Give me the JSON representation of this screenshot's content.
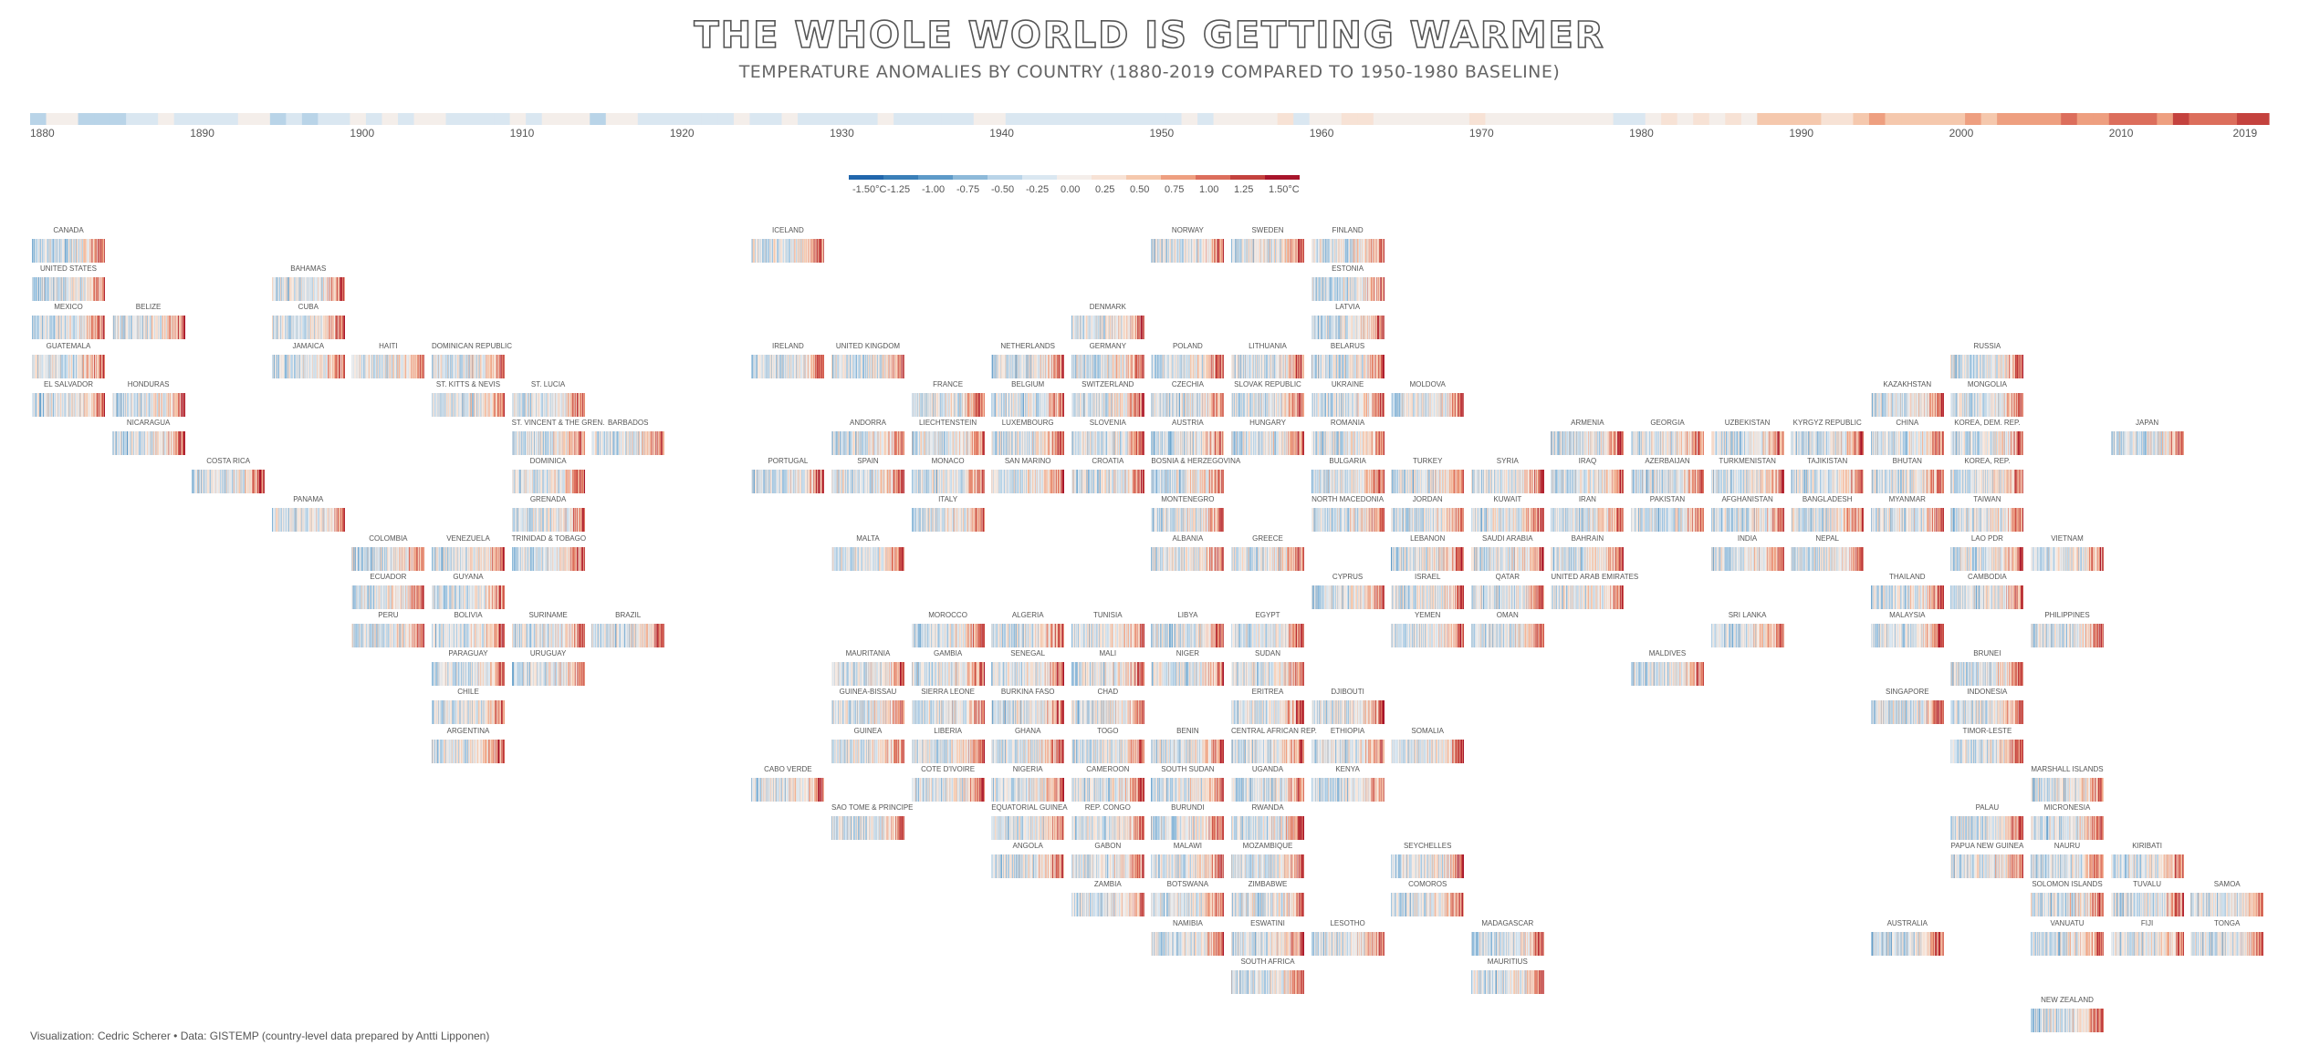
{
  "title": "THE WHOLE WORLD IS GETTING WARMER",
  "subtitle": "TEMPERATURE ANOMALIES BY COUNTRY (1880-2019 COMPARED TO 1950-1980 BASELINE)",
  "caption": "Visualization: Cedric Scherer  •  Data: GISTEMP (country-level data prepared by Antti Lipponen)",
  "timeline_ticks": [
    "1880",
    "1890",
    "1900",
    "1910",
    "1920",
    "1930",
    "1940",
    "1950",
    "1960",
    "1970",
    "1980",
    "1990",
    "2000",
    "2010",
    "2019"
  ],
  "legend": {
    "labels": [
      "-1.50°C",
      "-1.25",
      "-1.00",
      "-0.75",
      "-0.50",
      "-0.25",
      "0.00",
      "0.25",
      "0.50",
      "0.75",
      "1.00",
      "1.25",
      "1.50°C"
    ],
    "colors": [
      "#2166ac",
      "#3a7fb8",
      "#5d9ac8",
      "#8db9d9",
      "#b9d4e8",
      "#dae7f1",
      "#f4eeea",
      "#f7e2d5",
      "#f5c8ad",
      "#ee9f80",
      "#dc6e5c",
      "#c4423e",
      "#a8152b"
    ]
  },
  "chart_data": {
    "type": "heatmap",
    "description_of_encoding": "warming stripes per country; each stripe is one year 1880-2019 colored by temperature anomaly vs 1950-1980 baseline",
    "years": [
      1880,
      2019
    ],
    "color_range_celsius": [
      -1.5,
      1.5
    ],
    "countries": [
      {
        "name": "CANADA",
        "col": 0,
        "row": 0
      },
      {
        "name": "ICELAND",
        "col": 9,
        "row": 0
      },
      {
        "name": "NORWAY",
        "col": 14,
        "row": 0
      },
      {
        "name": "SWEDEN",
        "col": 15,
        "row": 0
      },
      {
        "name": "FINLAND",
        "col": 16,
        "row": 0
      },
      {
        "name": "UNITED STATES",
        "col": 0,
        "row": 1
      },
      {
        "name": "BAHAMAS",
        "col": 3,
        "row": 1
      },
      {
        "name": "ESTONIA",
        "col": 16,
        "row": 1
      },
      {
        "name": "MEXICO",
        "col": 0,
        "row": 2
      },
      {
        "name": "BELIZE",
        "col": 1,
        "row": 2
      },
      {
        "name": "CUBA",
        "col": 3,
        "row": 2
      },
      {
        "name": "DENMARK",
        "col": 13,
        "row": 2
      },
      {
        "name": "LATVIA",
        "col": 16,
        "row": 2
      },
      {
        "name": "GUATEMALA",
        "col": 0,
        "row": 3
      },
      {
        "name": "JAMAICA",
        "col": 3,
        "row": 3
      },
      {
        "name": "HAITI",
        "col": 4,
        "row": 3
      },
      {
        "name": "DOMINICAN REPUBLIC",
        "col": 5,
        "row": 3
      },
      {
        "name": "IRELAND",
        "col": 9,
        "row": 3
      },
      {
        "name": "UNITED KINGDOM",
        "col": 10,
        "row": 3
      },
      {
        "name": "NETHERLANDS",
        "col": 12,
        "row": 3
      },
      {
        "name": "GERMANY",
        "col": 13,
        "row": 3
      },
      {
        "name": "POLAND",
        "col": 14,
        "row": 3
      },
      {
        "name": "LITHUANIA",
        "col": 15,
        "row": 3
      },
      {
        "name": "BELARUS",
        "col": 16,
        "row": 3
      },
      {
        "name": "RUSSIA",
        "col": 24,
        "row": 3
      },
      {
        "name": "EL SALVADOR",
        "col": 0,
        "row": 4
      },
      {
        "name": "HONDURAS",
        "col": 1,
        "row": 4
      },
      {
        "name": "ST. KITTS & NEVIS",
        "col": 5,
        "row": 4
      },
      {
        "name": "ST. LUCIA",
        "col": 6,
        "row": 4
      },
      {
        "name": "FRANCE",
        "col": 11,
        "row": 4
      },
      {
        "name": "BELGIUM",
        "col": 12,
        "row": 4
      },
      {
        "name": "SWITZERLAND",
        "col": 13,
        "row": 4
      },
      {
        "name": "CZECHIA",
        "col": 14,
        "row": 4
      },
      {
        "name": "SLOVAK REPUBLIC",
        "col": 15,
        "row": 4
      },
      {
        "name": "UKRAINE",
        "col": 16,
        "row": 4
      },
      {
        "name": "MOLDOVA",
        "col": 17,
        "row": 4
      },
      {
        "name": "KAZAKHSTAN",
        "col": 23,
        "row": 4
      },
      {
        "name": "MONGOLIA",
        "col": 24,
        "row": 4
      },
      {
        "name": "NICARAGUA",
        "col": 1,
        "row": 5
      },
      {
        "name": "ST. VINCENT & THE GREN.",
        "col": 6,
        "row": 5
      },
      {
        "name": "BARBADOS",
        "col": 7,
        "row": 5
      },
      {
        "name": "ANDORRA",
        "col": 10,
        "row": 5
      },
      {
        "name": "LIECHTENSTEIN",
        "col": 11,
        "row": 5
      },
      {
        "name": "LUXEMBOURG",
        "col": 12,
        "row": 5
      },
      {
        "name": "SLOVENIA",
        "col": 13,
        "row": 5
      },
      {
        "name": "AUSTRIA",
        "col": 14,
        "row": 5
      },
      {
        "name": "HUNGARY",
        "col": 15,
        "row": 5
      },
      {
        "name": "ROMANIA",
        "col": 16,
        "row": 5
      },
      {
        "name": "ARMENIA",
        "col": 19,
        "row": 5
      },
      {
        "name": "GEORGIA",
        "col": 20,
        "row": 5
      },
      {
        "name": "UZBEKISTAN",
        "col": 21,
        "row": 5
      },
      {
        "name": "KYRGYZ REPUBLIC",
        "col": 22,
        "row": 5
      },
      {
        "name": "CHINA",
        "col": 23,
        "row": 5
      },
      {
        "name": "KOREA, DEM. REP.",
        "col": 24,
        "row": 5
      },
      {
        "name": "JAPAN",
        "col": 26,
        "row": 5
      },
      {
        "name": "COSTA RICA",
        "col": 2,
        "row": 6
      },
      {
        "name": "DOMINICA",
        "col": 6,
        "row": 6
      },
      {
        "name": "PORTUGAL",
        "col": 9,
        "row": 6
      },
      {
        "name": "SPAIN",
        "col": 10,
        "row": 6
      },
      {
        "name": "MONACO",
        "col": 11,
        "row": 6
      },
      {
        "name": "SAN MARINO",
        "col": 12,
        "row": 6
      },
      {
        "name": "CROATIA",
        "col": 13,
        "row": 6
      },
      {
        "name": "BOSNIA & HERZEGOVINA",
        "col": 14,
        "row": 6
      },
      {
        "name": "BULGARIA",
        "col": 16,
        "row": 6
      },
      {
        "name": "TURKEY",
        "col": 17,
        "row": 6
      },
      {
        "name": "SYRIA",
        "col": 18,
        "row": 6
      },
      {
        "name": "IRAQ",
        "col": 19,
        "row": 6
      },
      {
        "name": "AZERBAIJAN",
        "col": 20,
        "row": 6
      },
      {
        "name": "TURKMENISTAN",
        "col": 21,
        "row": 6
      },
      {
        "name": "TAJIKISTAN",
        "col": 22,
        "row": 6
      },
      {
        "name": "BHUTAN",
        "col": 23,
        "row": 6
      },
      {
        "name": "KOREA, REP.",
        "col": 24,
        "row": 6
      },
      {
        "name": "PANAMA",
        "col": 3,
        "row": 7
      },
      {
        "name": "GRENADA",
        "col": 6,
        "row": 7
      },
      {
        "name": "ITALY",
        "col": 11,
        "row": 7
      },
      {
        "name": "MONTENEGRO",
        "col": 14,
        "row": 7
      },
      {
        "name": "NORTH MACEDONIA",
        "col": 16,
        "row": 7
      },
      {
        "name": "JORDAN",
        "col": 17,
        "row": 7
      },
      {
        "name": "KUWAIT",
        "col": 18,
        "row": 7
      },
      {
        "name": "IRAN",
        "col": 19,
        "row": 7
      },
      {
        "name": "PAKISTAN",
        "col": 20,
        "row": 7
      },
      {
        "name": "AFGHANISTAN",
        "col": 21,
        "row": 7
      },
      {
        "name": "BANGLADESH",
        "col": 22,
        "row": 7
      },
      {
        "name": "MYANMAR",
        "col": 23,
        "row": 7
      },
      {
        "name": "TAIWAN",
        "col": 24,
        "row": 7
      },
      {
        "name": "COLOMBIA",
        "col": 4,
        "row": 8
      },
      {
        "name": "VENEZUELA",
        "col": 5,
        "row": 8
      },
      {
        "name": "TRINIDAD & TOBAGO",
        "col": 6,
        "row": 8
      },
      {
        "name": "MALTA",
        "col": 10,
        "row": 8
      },
      {
        "name": "ALBANIA",
        "col": 14,
        "row": 8
      },
      {
        "name": "GREECE",
        "col": 15,
        "row": 8
      },
      {
        "name": "LEBANON",
        "col": 17,
        "row": 8
      },
      {
        "name": "SAUDI ARABIA",
        "col": 18,
        "row": 8
      },
      {
        "name": "BAHRAIN",
        "col": 19,
        "row": 8
      },
      {
        "name": "INDIA",
        "col": 21,
        "row": 8
      },
      {
        "name": "NEPAL",
        "col": 22,
        "row": 8
      },
      {
        "name": "LAO PDR",
        "col": 24,
        "row": 8
      },
      {
        "name": "VIETNAM",
        "col": 25,
        "row": 8
      },
      {
        "name": "ECUADOR",
        "col": 4,
        "row": 9
      },
      {
        "name": "GUYANA",
        "col": 5,
        "row": 9
      },
      {
        "name": "CYPRUS",
        "col": 16,
        "row": 9
      },
      {
        "name": "ISRAEL",
        "col": 17,
        "row": 9
      },
      {
        "name": "QATAR",
        "col": 18,
        "row": 9
      },
      {
        "name": "UNITED ARAB EMIRATES",
        "col": 19,
        "row": 9
      },
      {
        "name": "THAILAND",
        "col": 23,
        "row": 9
      },
      {
        "name": "CAMBODIA",
        "col": 24,
        "row": 9
      },
      {
        "name": "PERU",
        "col": 4,
        "row": 10
      },
      {
        "name": "BOLIVIA",
        "col": 5,
        "row": 10
      },
      {
        "name": "SURINAME",
        "col": 6,
        "row": 10
      },
      {
        "name": "BRAZIL",
        "col": 7,
        "row": 10
      },
      {
        "name": "MOROCCO",
        "col": 11,
        "row": 10
      },
      {
        "name": "ALGERIA",
        "col": 12,
        "row": 10
      },
      {
        "name": "TUNISIA",
        "col": 13,
        "row": 10
      },
      {
        "name": "LIBYA",
        "col": 14,
        "row": 10
      },
      {
        "name": "EGYPT",
        "col": 15,
        "row": 10
      },
      {
        "name": "YEMEN",
        "col": 17,
        "row": 10
      },
      {
        "name": "OMAN",
        "col": 18,
        "row": 10
      },
      {
        "name": "SRI LANKA",
        "col": 21,
        "row": 10
      },
      {
        "name": "MALAYSIA",
        "col": 23,
        "row": 10
      },
      {
        "name": "PHILIPPINES",
        "col": 25,
        "row": 10
      },
      {
        "name": "PARAGUAY",
        "col": 5,
        "row": 11
      },
      {
        "name": "URUGUAY",
        "col": 6,
        "row": 11
      },
      {
        "name": "MAURITANIA",
        "col": 10,
        "row": 11
      },
      {
        "name": "GAMBIA",
        "col": 11,
        "row": 11
      },
      {
        "name": "SENEGAL",
        "col": 12,
        "row": 11
      },
      {
        "name": "MALI",
        "col": 13,
        "row": 11
      },
      {
        "name": "NIGER",
        "col": 14,
        "row": 11
      },
      {
        "name": "SUDAN",
        "col": 15,
        "row": 11
      },
      {
        "name": "MALDIVES",
        "col": 20,
        "row": 11
      },
      {
        "name": "BRUNEI",
        "col": 24,
        "row": 11
      },
      {
        "name": "CHILE",
        "col": 5,
        "row": 12
      },
      {
        "name": "GUINEA-BISSAU",
        "col": 10,
        "row": 12
      },
      {
        "name": "SIERRA LEONE",
        "col": 11,
        "row": 12
      },
      {
        "name": "BURKINA FASO",
        "col": 12,
        "row": 12
      },
      {
        "name": "CHAD",
        "col": 13,
        "row": 12
      },
      {
        "name": "ERITREA",
        "col": 15,
        "row": 12
      },
      {
        "name": "DJIBOUTI",
        "col": 16,
        "row": 12
      },
      {
        "name": "SINGAPORE",
        "col": 23,
        "row": 12
      },
      {
        "name": "INDONESIA",
        "col": 24,
        "row": 12
      },
      {
        "name": "ARGENTINA",
        "col": 5,
        "row": 13
      },
      {
        "name": "GUINEA",
        "col": 10,
        "row": 13
      },
      {
        "name": "LIBERIA",
        "col": 11,
        "row": 13
      },
      {
        "name": "GHANA",
        "col": 12,
        "row": 13
      },
      {
        "name": "TOGO",
        "col": 13,
        "row": 13
      },
      {
        "name": "BENIN",
        "col": 14,
        "row": 13
      },
      {
        "name": "CENTRAL AFRICAN REP.",
        "col": 15,
        "row": 13
      },
      {
        "name": "ETHIOPIA",
        "col": 16,
        "row": 13
      },
      {
        "name": "SOMALIA",
        "col": 17,
        "row": 13
      },
      {
        "name": "TIMOR-LESTE",
        "col": 24,
        "row": 13
      },
      {
        "name": "CABO VERDE",
        "col": 9,
        "row": 14
      },
      {
        "name": "COTE D'IVOIRE",
        "col": 11,
        "row": 14
      },
      {
        "name": "NIGERIA",
        "col": 12,
        "row": 14
      },
      {
        "name": "CAMEROON",
        "col": 13,
        "row": 14
      },
      {
        "name": "SOUTH SUDAN",
        "col": 14,
        "row": 14
      },
      {
        "name": "UGANDA",
        "col": 15,
        "row": 14
      },
      {
        "name": "KENYA",
        "col": 16,
        "row": 14
      },
      {
        "name": "MARSHALL ISLANDS",
        "col": 25,
        "row": 14
      },
      {
        "name": "SAO TOME & PRINCIPE",
        "col": 10,
        "row": 15
      },
      {
        "name": "EQUATORIAL GUINEA",
        "col": 12,
        "row": 15
      },
      {
        "name": "REP. CONGO",
        "col": 13,
        "row": 15
      },
      {
        "name": "BURUNDI",
        "col": 14,
        "row": 15
      },
      {
        "name": "RWANDA",
        "col": 15,
        "row": 15
      },
      {
        "name": "PALAU",
        "col": 24,
        "row": 15
      },
      {
        "name": "MICRONESIA",
        "col": 25,
        "row": 15
      },
      {
        "name": "ANGOLA",
        "col": 12,
        "row": 16
      },
      {
        "name": "GABON",
        "col": 13,
        "row": 16
      },
      {
        "name": "MALAWI",
        "col": 14,
        "row": 16
      },
      {
        "name": "MOZAMBIQUE",
        "col": 15,
        "row": 16
      },
      {
        "name": "SEYCHELLES",
        "col": 17,
        "row": 16
      },
      {
        "name": "PAPUA NEW GUINEA",
        "col": 24,
        "row": 16
      },
      {
        "name": "NAURU",
        "col": 25,
        "row": 16
      },
      {
        "name": "KIRIBATI",
        "col": 26,
        "row": 16
      },
      {
        "name": "ZAMBIA",
        "col": 13,
        "row": 17
      },
      {
        "name": "BOTSWANA",
        "col": 14,
        "row": 17
      },
      {
        "name": "ZIMBABWE",
        "col": 15,
        "row": 17
      },
      {
        "name": "COMOROS",
        "col": 17,
        "row": 17
      },
      {
        "name": "SOLOMON ISLANDS",
        "col": 25,
        "row": 17
      },
      {
        "name": "TUVALU",
        "col": 26,
        "row": 17
      },
      {
        "name": "SAMOA",
        "col": 27,
        "row": 17
      },
      {
        "name": "NAMIBIA",
        "col": 14,
        "row": 18
      },
      {
        "name": "ESWATINI",
        "col": 15,
        "row": 18
      },
      {
        "name": "LESOTHO",
        "col": 16,
        "row": 18
      },
      {
        "name": "MADAGASCAR",
        "col": 18,
        "row": 18
      },
      {
        "name": "AUSTRALIA",
        "col": 23,
        "row": 18
      },
      {
        "name": "VANUATU",
        "col": 25,
        "row": 18
      },
      {
        "name": "FIJI",
        "col": 26,
        "row": 18
      },
      {
        "name": "TONGA",
        "col": 27,
        "row": 18
      },
      {
        "name": "SOUTH AFRICA",
        "col": 15,
        "row": 19
      },
      {
        "name": "MAURITIUS",
        "col": 18,
        "row": 19
      },
      {
        "name": "NEW ZEALAND",
        "col": 25,
        "row": 20
      }
    ]
  }
}
